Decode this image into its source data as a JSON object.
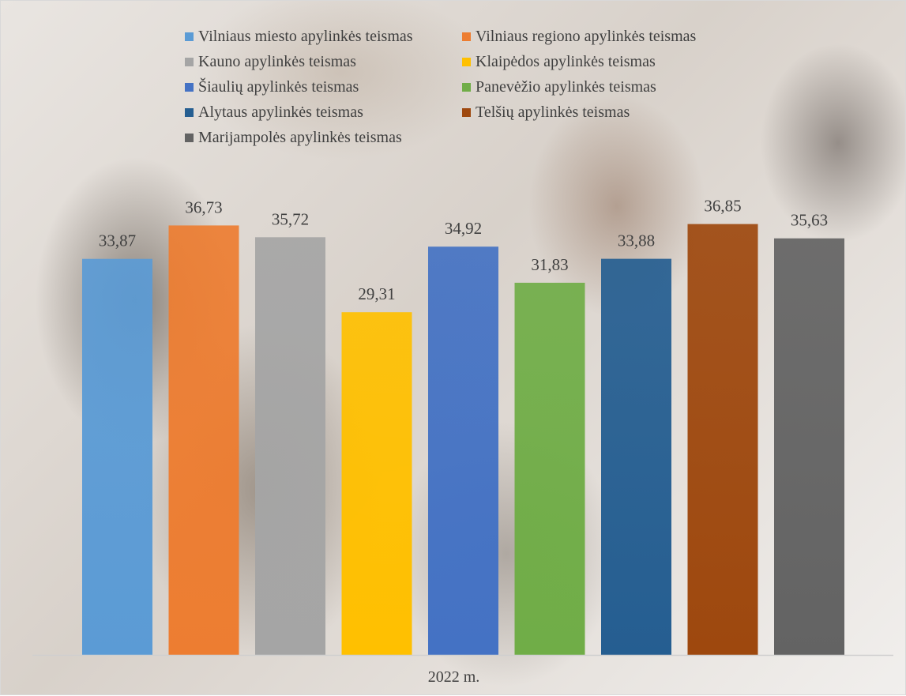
{
  "chart_data": {
    "type": "bar",
    "categories": [
      "2022 m."
    ],
    "ylim": [
      0,
      40
    ],
    "grid": false,
    "legend_position": "top",
    "series": [
      {
        "name": "Vilniaus miesto apylinkės teismas",
        "value": 33.87,
        "label": "33,87",
        "color": "#5B9BD5"
      },
      {
        "name": "Vilniaus regiono apylinkės teismas",
        "value": 36.73,
        "label": "36,73",
        "color": "#ED7D31"
      },
      {
        "name": "Kauno apylinkės teismas",
        "value": 35.72,
        "label": "35,72",
        "color": "#A5A5A5"
      },
      {
        "name": "Klaipėdos apylinkės teismas",
        "value": 29.31,
        "label": "29,31",
        "color": "#FFC000"
      },
      {
        "name": "Šiaulių apylinkės teismas",
        "value": 34.92,
        "label": "34,92",
        "color": "#4472C4"
      },
      {
        "name": "Panevėžio apylinkės teismas",
        "value": 31.83,
        "label": "31,83",
        "color": "#70AD47"
      },
      {
        "name": "Alytaus apylinkės teismas",
        "value": 33.88,
        "label": "33,88",
        "color": "#255E91"
      },
      {
        "name": "Telšių apylinkės teismas",
        "value": 36.85,
        "label": "36,85",
        "color": "#9E480E"
      },
      {
        "name": "Marijampolės apylinkės teismas",
        "value": 35.63,
        "label": "35,63",
        "color": "#636363"
      }
    ]
  }
}
